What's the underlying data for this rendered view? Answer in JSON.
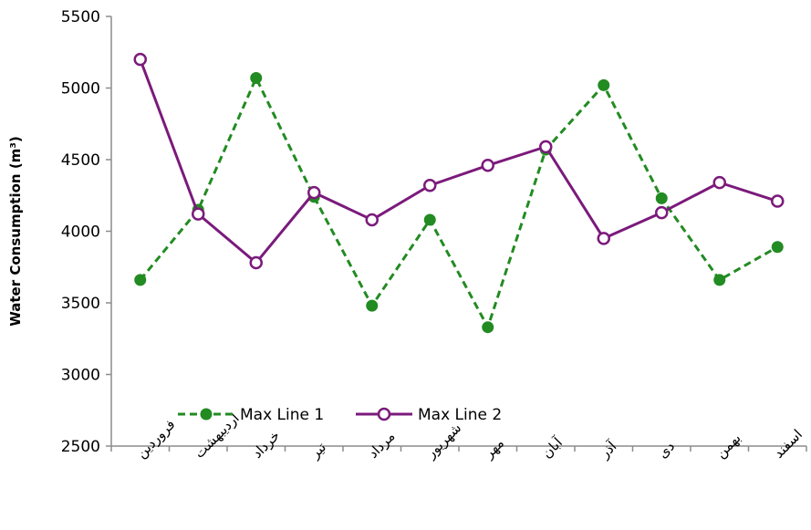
{
  "chart_data": {
    "type": "line",
    "categories": [
      "فروردین",
      "اردیبهشت",
      "خرداد",
      "تیر",
      "مرداد",
      "شهریور",
      "مهر",
      "آبان",
      "آذر",
      "دی",
      "بهمن",
      "اسفند"
    ],
    "ylabel": "Water Consumption (m³)",
    "ylim": [
      2500,
      5500
    ],
    "yticks": [
      2500,
      3000,
      3500,
      4000,
      4500,
      5000,
      5500
    ],
    "grid": false,
    "legend_position": "bottom-left",
    "series": [
      {
        "name": "Max Line 1",
        "color": "#228b22",
        "line_style": "dashed",
        "marker": "filled-circle",
        "values": [
          3660,
          4150,
          5070,
          4240,
          3480,
          4080,
          3330,
          4570,
          5020,
          4230,
          3660,
          3890
        ]
      },
      {
        "name": "Max Line 2",
        "color": "#7b1a7b",
        "line_style": "solid",
        "marker": "hollow-circle",
        "values": [
          5200,
          4120,
          3780,
          4270,
          4080,
          4320,
          4460,
          4590,
          3950,
          4130,
          4340,
          4210
        ]
      }
    ]
  }
}
